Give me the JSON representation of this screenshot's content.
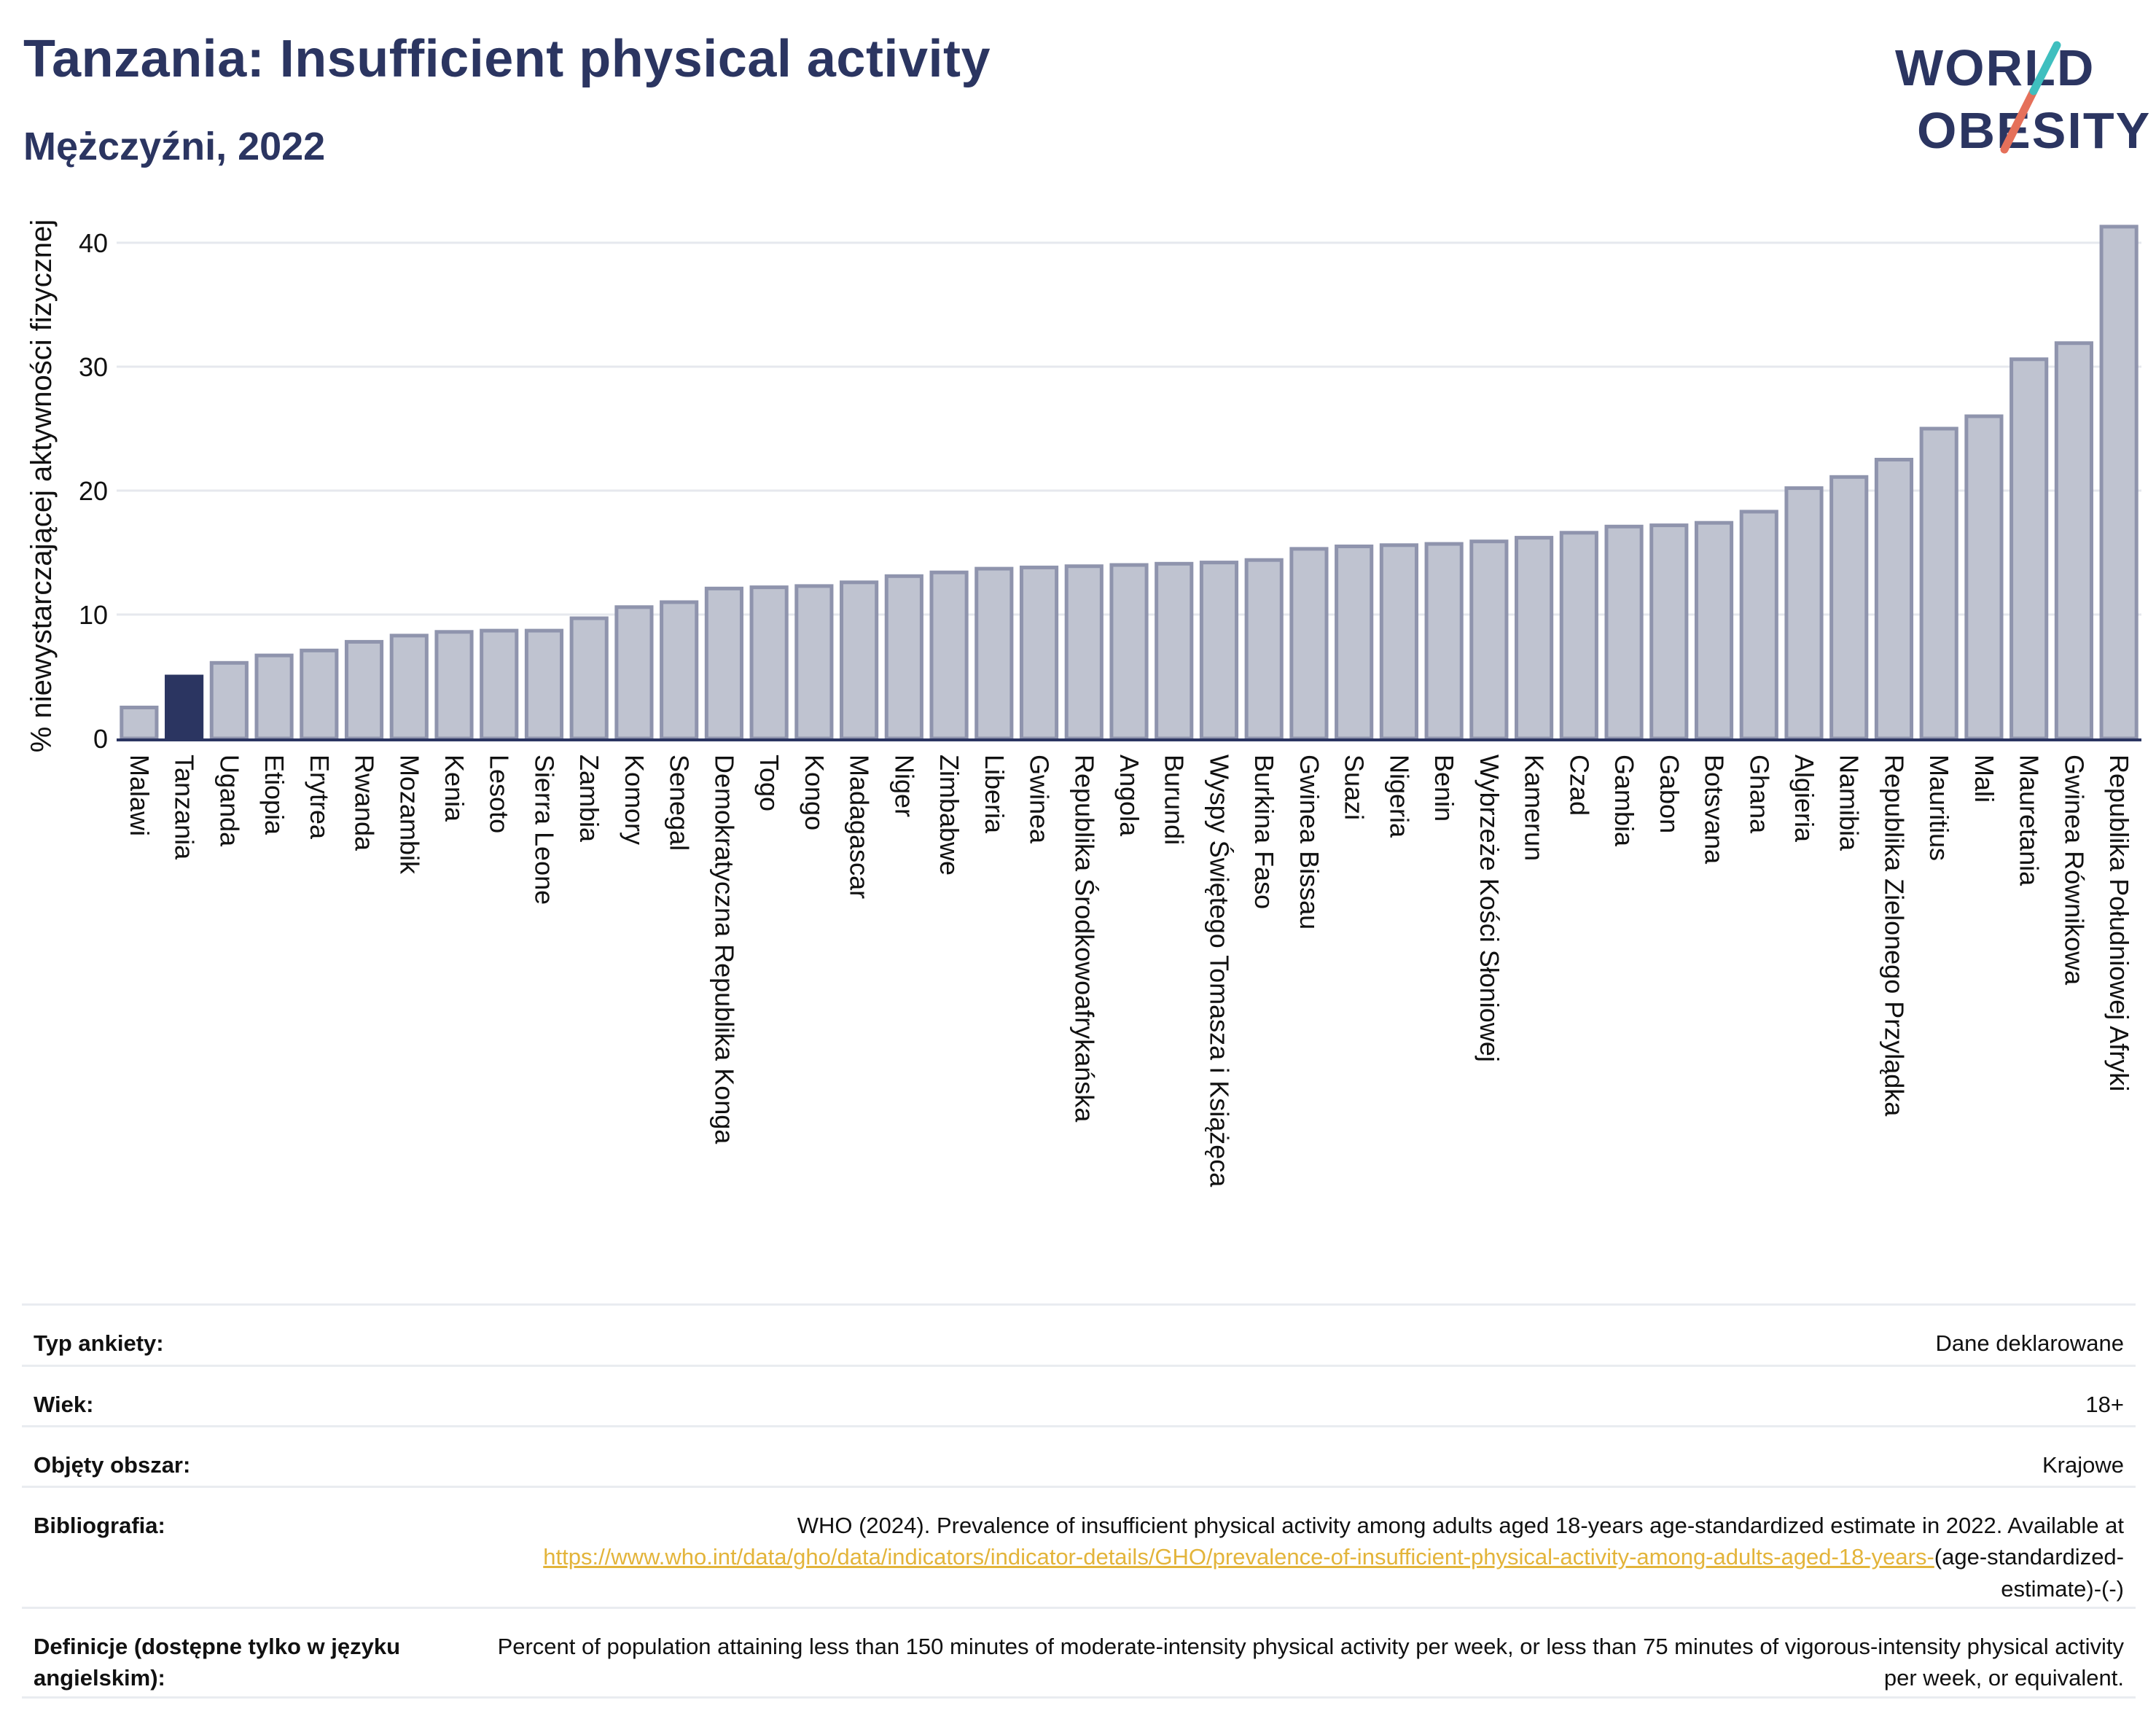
{
  "header": {
    "title": "Tanzania: Insufficient physical activity",
    "subtitle": "Mężczyźni, 2022"
  },
  "logo": {
    "line1": "WORLD",
    "line2": "OBESITY",
    "colors": {
      "navy": "#2b3561",
      "teal": "#3fbfbf",
      "coral": "#e5705a"
    }
  },
  "colors": {
    "bar": "#bfc3d0",
    "bar_stroke": "#8f94ad",
    "highlight": "#2b3561",
    "grid": "#e6e8ee",
    "axis": "#2b3561",
    "link": "#e3b43a"
  },
  "chart_data": {
    "type": "bar",
    "ylabel": "% niewystarczającej aktywności fizycznej",
    "xlabel": "",
    "ylim": [
      0,
      42
    ],
    "yticks": [
      0,
      10,
      20,
      30,
      40
    ],
    "grid": true,
    "highlight": "Tanzania",
    "categories": [
      "Malawi",
      "Tanzania",
      "Uganda",
      "Etiopia",
      "Erytrea",
      "Rwanda",
      "Mozambik",
      "Kenia",
      "Lesoto",
      "Sierra Leone",
      "Zambia",
      "Komory",
      "Senegal",
      "Demokratyczna Republika Konga",
      "Togo",
      "Kongo",
      "Madagascar",
      "Niger",
      "Zimbabwe",
      "Liberia",
      "Gwinea",
      "Republika Środkowoafrykańska",
      "Angola",
      "Burundi",
      "Wyspy Świętego Tomasza i Książęca",
      "Burkina Faso",
      "Gwinea Bissau",
      "Suazi",
      "Nigeria",
      "Benin",
      "Wybrzeże Kości Słoniowej",
      "Kamerun",
      "Czad",
      "Gambia",
      "Gabon",
      "Botsvana",
      "Ghana",
      "Algieria",
      "Namibia",
      "Republika Zielonego Przylądka",
      "Mauritius",
      "Mali",
      "Mauretania",
      "Gwinea Równikowa",
      "Republika Południowej Afryki"
    ],
    "values": [
      2.5,
      5.0,
      6.1,
      6.7,
      7.1,
      7.8,
      8.3,
      8.6,
      8.7,
      8.7,
      9.7,
      10.6,
      11.0,
      12.1,
      12.2,
      12.3,
      12.6,
      13.1,
      13.4,
      13.7,
      13.8,
      13.9,
      14.0,
      14.1,
      14.2,
      14.4,
      15.3,
      15.5,
      15.6,
      15.7,
      15.9,
      16.2,
      16.6,
      17.1,
      17.2,
      17.4,
      18.3,
      20.2,
      21.1,
      22.5,
      25.0,
      26.0,
      30.6,
      31.9,
      41.3
    ]
  },
  "info": {
    "survey_label": "Typ ankiety:",
    "survey_value": "Dane deklarowane",
    "age_label": "Wiek:",
    "age_value": "18+",
    "area_label": "Objęty obszar:",
    "area_value": "Krajowe",
    "bib_label": "Bibliografia:",
    "bib_text": "WHO (2024). Prevalence of insufficient physical activity among adults aged 18-years age-standardized estimate in 2022. Available at",
    "bib_link": "https://www.who.int/data/gho/data/indicators/indicator-details/GHO/prevalence-of-insufficient-physical-activity-among-adults-aged-18-years-",
    "bib_suffix": "(age-standardized-estimate)-(-)",
    "def_label": "Definicje (dostępne tylko w języku angielskim):",
    "def_value": "Percent of population attaining less than 150 minutes of moderate-intensity physical activity per week, or less than 75 minutes of vigorous-intensity physical activity per week, or equivalent."
  }
}
